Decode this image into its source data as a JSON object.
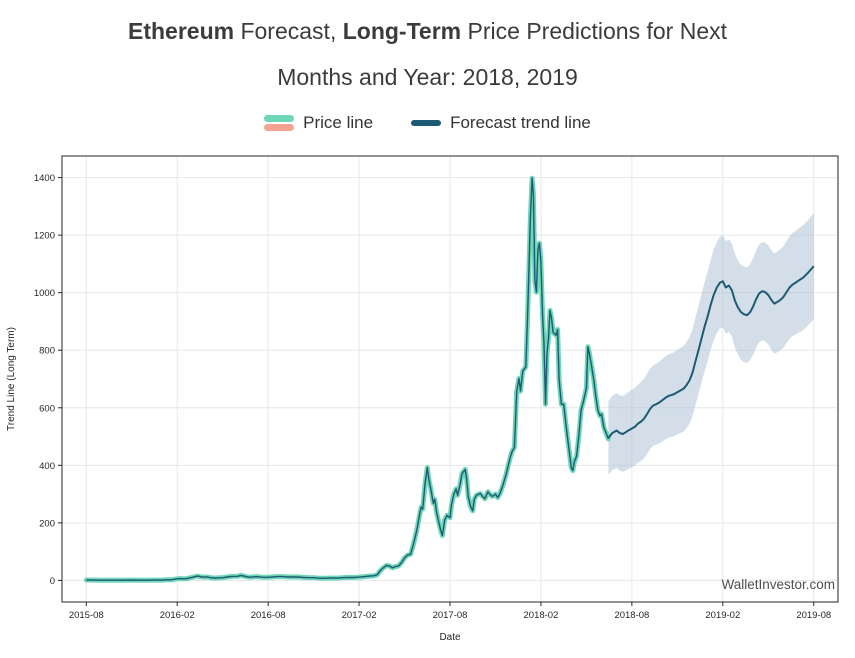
{
  "title": {
    "part1": "Ethereum",
    "part2": " Forecast, ",
    "part3": "Long-Term",
    "part4": " Price Predictions for Next",
    "line2": "Months and Year: 2018, 2019"
  },
  "legend": {
    "items": [
      {
        "label": "Price line",
        "colors": [
          "#6fd6b8",
          "#f5a493"
        ]
      },
      {
        "label": "Forecast trend line",
        "color": "#1d5a74"
      }
    ]
  },
  "watermark": "WalletInvestor.com",
  "chart_data": {
    "type": "line",
    "title": "Ethereum Forecast, Long-Term Price Predictions for Next Months and Year: 2018, 2019",
    "xlabel": "Date",
    "ylabel": "Trend Line (Long Term)",
    "x_unit": "months since 2015-08",
    "xlim": [
      -1.6,
      49.6
    ],
    "ylim": [
      -75,
      1475
    ],
    "grid": true,
    "legend_position": "top",
    "xticks": {
      "values": [
        0,
        6,
        12,
        18,
        24,
        30,
        36,
        42,
        48
      ],
      "labels": [
        "2015-08",
        "2016-02",
        "2016-08",
        "2017-02",
        "2017-08",
        "2018-02",
        "2018-08",
        "2019-02",
        "2019-08"
      ]
    },
    "yticks": [
      0,
      200,
      400,
      600,
      800,
      1000,
      1200,
      1400
    ],
    "series": [
      {
        "name": "Price line",
        "color_outer": "#6fd6b8",
        "color_core": "#1d5a74",
        "x": [
          0,
          0.5,
          1,
          1.5,
          2,
          2.5,
          3,
          3.5,
          4,
          4.5,
          5,
          5.3,
          5.6,
          6,
          6.2,
          6.4,
          6.6,
          7,
          7.2,
          7.4,
          7.6,
          7.8,
          8,
          8.2,
          8.5,
          8.8,
          9,
          9.3,
          9.6,
          10,
          10.2,
          10.4,
          10.6,
          10.8,
          11,
          11.3,
          11.6,
          12,
          12.3,
          12.6,
          13,
          13.3,
          13.6,
          14,
          14.3,
          14.6,
          15,
          15.3,
          15.6,
          16,
          16.3,
          16.6,
          17,
          17.3,
          17.6,
          18,
          18.3,
          18.6,
          19,
          19.2,
          19.4,
          19.6,
          19.8,
          20,
          20.2,
          20.4,
          20.6,
          20.8,
          21,
          21.2,
          21.4,
          21.6,
          21.8,
          22,
          22.1,
          22.2,
          22.35,
          22.5,
          22.6,
          22.75,
          22.9,
          23,
          23.1,
          23.25,
          23.4,
          23.5,
          23.65,
          23.8,
          24,
          24.1,
          24.25,
          24.4,
          24.5,
          24.65,
          24.8,
          25,
          25.1,
          25.2,
          25.35,
          25.5,
          25.6,
          25.75,
          26,
          26.15,
          26.3,
          26.5,
          26.65,
          26.8,
          27,
          27.15,
          27.3,
          27.5,
          27.7,
          27.85,
          28,
          28.1,
          28.25,
          28.4,
          28.55,
          28.65,
          28.8,
          29,
          29.1,
          29.2,
          29.3,
          29.42,
          29.5,
          29.6,
          29.7,
          29.8,
          29.9,
          30,
          30.1,
          30.2,
          30.3,
          30.4,
          30.5,
          30.6,
          30.7,
          30.8,
          31,
          31.1,
          31.2,
          31.35,
          31.5,
          31.65,
          31.8,
          32,
          32.1,
          32.2,
          32.35,
          32.5,
          32.65,
          32.8,
          33,
          33.1,
          33.2,
          33.35,
          33.5,
          33.6,
          33.75,
          33.9,
          34,
          34.15,
          34.3,
          34.45
        ],
        "y": [
          1.3,
          1.2,
          0.9,
          0.7,
          0.65,
          0.9,
          0.95,
          0.88,
          0.92,
          0.95,
          1.0,
          2.2,
          2.0,
          5.8,
          6.3,
          5.5,
          6.0,
          11,
          13.5,
          15,
          12,
          11.5,
          11.8,
          9.5,
          8.2,
          9.0,
          9.5,
          12,
          14,
          14.2,
          17.5,
          15,
          12.5,
          11,
          12.3,
          12.8,
          11.2,
          11.0,
          12.2,
          13.1,
          13.2,
          12.0,
          12.4,
          11.9,
          10.4,
          9.8,
          9.3,
          8.2,
          7.2,
          7.9,
          8.3,
          8.0,
          9.8,
          10.6,
          10.3,
          11.5,
          12.9,
          14.5,
          16.5,
          20,
          34,
          44,
          52,
          50,
          44,
          48,
          50,
          62,
          78,
          88,
          91,
          128,
          172,
          230,
          255,
          248,
          335,
          392,
          352,
          312,
          268,
          282,
          240,
          205,
          172,
          156,
          210,
          226,
          218,
          262,
          300,
          318,
          296,
          330,
          372,
          386,
          352,
          292,
          258,
          242,
          282,
          296,
          302,
          292,
          284,
          308,
          298,
          292,
          300,
          288,
          302,
          332,
          368,
          402,
          432,
          448,
          462,
          658,
          702,
          658,
          728,
          742,
          888,
          1062,
          1252,
          1398,
          1342,
          1042,
          1002,
          1148,
          1172,
          1108,
          928,
          822,
          612,
          788,
          842,
          938,
          912,
          862,
          852,
          872,
          698,
          612,
          612,
          542,
          478,
          392,
          382,
          412,
          432,
          502,
          592,
          622,
          668,
          812,
          788,
          742,
          692,
          648,
          592,
          572,
          578,
          532,
          512,
          492
        ]
      },
      {
        "name": "Forecast trend line",
        "color": "#1d5a74",
        "band_color": "#aec3d6",
        "x": [
          34.45,
          34.7,
          35,
          35.2,
          35.4,
          35.6,
          35.8,
          36,
          36.2,
          36.4,
          36.6,
          36.8,
          37,
          37.2,
          37.4,
          37.6,
          37.8,
          38,
          38.2,
          38.4,
          38.6,
          38.8,
          39,
          39.2,
          39.4,
          39.6,
          39.8,
          40,
          40.2,
          40.4,
          40.6,
          40.8,
          41,
          41.2,
          41.4,
          41.6,
          41.8,
          42,
          42.2,
          42.4,
          42.6,
          42.8,
          43,
          43.2,
          43.4,
          43.6,
          43.8,
          44,
          44.2,
          44.4,
          44.6,
          44.8,
          45,
          45.2,
          45.4,
          45.6,
          45.8,
          46,
          46.2,
          46.4,
          46.6,
          46.8,
          47,
          47.3,
          47.6,
          48
        ],
        "y": [
          495,
          512,
          521,
          512,
          509,
          515,
          522,
          528,
          534,
          545,
          552,
          562,
          578,
          596,
          608,
          612,
          618,
          626,
          634,
          641,
          644,
          648,
          654,
          660,
          666,
          678,
          695,
          722,
          762,
          802,
          842,
          882,
          918,
          958,
          992,
          1018,
          1034,
          1040,
          1018,
          1025,
          1008,
          972,
          948,
          932,
          925,
          922,
          932,
          952,
          978,
          998,
          1005,
          1002,
          992,
          975,
          962,
          968,
          975,
          985,
          1002,
          1018,
          1028,
          1035,
          1042,
          1052,
          1068,
          1092
        ],
        "lower": [
          367,
          383,
          391,
          381,
          377,
          382,
          388,
          393,
          399,
          409,
          415,
          424,
          439,
          456,
          468,
          471,
          476,
          483,
          490,
          496,
          499,
          502,
          507,
          512,
          517,
          528,
          545,
          571,
          610,
          649,
          688,
          727,
          762,
          802,
          835,
          860,
          875,
          880,
          857,
          864,
          846,
          809,
          784,
          767,
          759,
          756,
          765,
          784,
          809,
          828,
          834,
          831,
          820,
          802,
          788,
          793,
          799,
          808,
          825,
          840,
          849,
          855,
          861,
          870,
          885,
          907
        ],
        "upper": [
          623,
          641,
          651,
          643,
          641,
          648,
          656,
          663,
          669,
          681,
          689,
          700,
          717,
          736,
          748,
          753,
          760,
          769,
          778,
          786,
          789,
          794,
          801,
          808,
          815,
          828,
          845,
          873,
          914,
          955,
          996,
          1037,
          1074,
          1114,
          1149,
          1176,
          1193,
          1200,
          1179,
          1186,
          1170,
          1135,
          1112,
          1097,
          1091,
          1088,
          1099,
          1120,
          1147,
          1168,
          1176,
          1173,
          1164,
          1148,
          1136,
          1143,
          1151,
          1162,
          1179,
          1196,
          1207,
          1215,
          1223,
          1234,
          1251,
          1277
        ]
      }
    ]
  }
}
